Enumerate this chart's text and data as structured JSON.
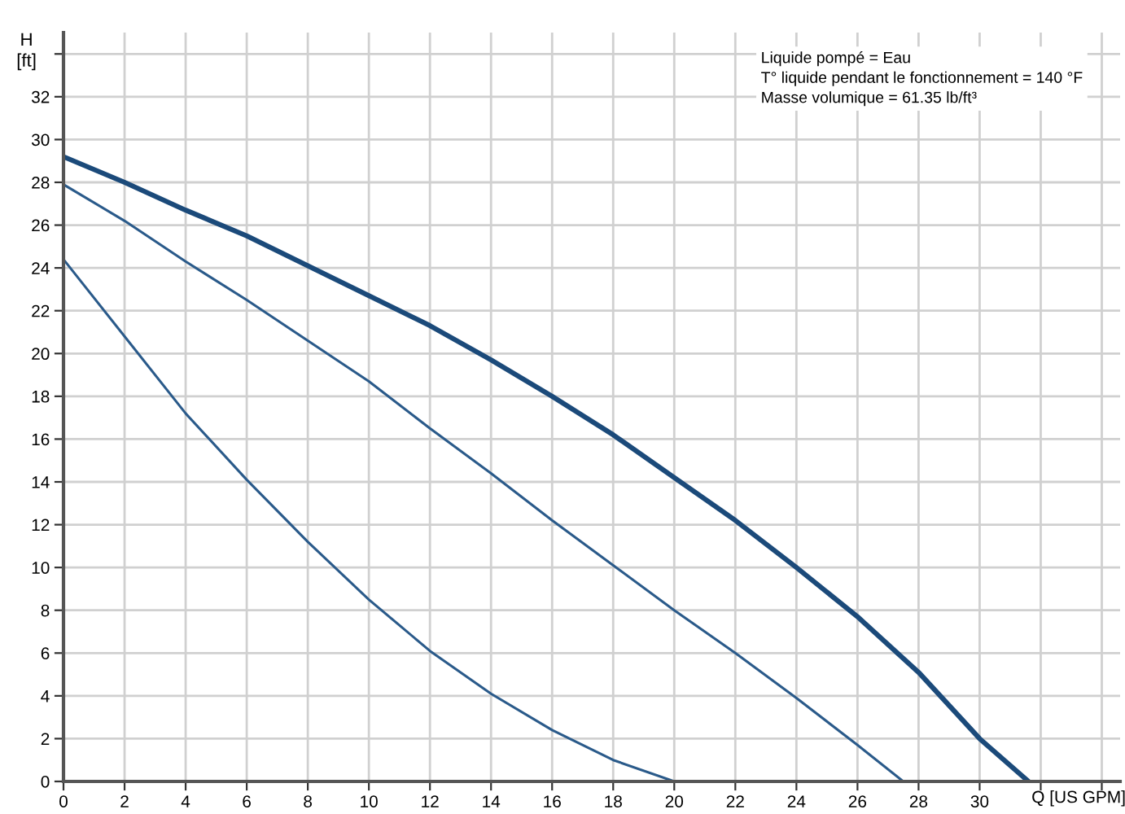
{
  "chart_data": {
    "type": "line",
    "xlabel": "Q [US GPM]",
    "ylabel": "H\n[ft]",
    "x": [
      0,
      2,
      4,
      6,
      8,
      10,
      12,
      14,
      16,
      18,
      20,
      22,
      24,
      26,
      28,
      30,
      31.6
    ],
    "series": [
      {
        "color": "#1b4a7a",
        "values": [
          29.2,
          28.0,
          26.7,
          25.5,
          24.1,
          22.7,
          21.3,
          19.7,
          18.0,
          16.2,
          14.2,
          12.2,
          10.0,
          7.7,
          5.1,
          2.0,
          0
        ]
      },
      {
        "color": "#2a5a8a",
        "x": [
          0,
          2,
          4,
          6,
          8,
          10,
          12,
          14,
          16,
          18,
          20,
          22,
          24,
          26,
          27.5
        ],
        "values": [
          27.9,
          26.2,
          24.3,
          22.5,
          20.6,
          18.7,
          16.5,
          14.4,
          12.2,
          10.1,
          8.0,
          6.0,
          3.9,
          1.7,
          0
        ]
      },
      {
        "color": "#2a5a8a",
        "x": [
          0,
          2,
          4,
          6,
          8,
          10,
          12,
          14,
          16,
          18,
          20
        ],
        "values": [
          24.4,
          20.8,
          17.2,
          14.1,
          11.2,
          8.5,
          6.1,
          4.1,
          2.4,
          1.0,
          0
        ]
      }
    ],
    "xlim": [
      0,
      34.6
    ],
    "ylim": [
      0,
      35
    ],
    "xticks": [
      0,
      2,
      4,
      6,
      8,
      10,
      12,
      14,
      16,
      18,
      20,
      22,
      24,
      26,
      28,
      30,
      {
        "value": 32,
        "label": null
      },
      {
        "value": 34,
        "label": null
      }
    ],
    "yticks": [
      0,
      2,
      4,
      6,
      8,
      10,
      12,
      14,
      16,
      18,
      20,
      22,
      24,
      26,
      28,
      30,
      32,
      {
        "value": 34,
        "label": null
      }
    ],
    "grid": true,
    "legend": false,
    "marker": "none",
    "line_style": "solid",
    "annotations": [
      "Liquide pompé = Eau",
      "T° liquide pendant le fonctionnement = 140 °F",
      "Masse volumique = 61.35 lb/ft³"
    ]
  }
}
